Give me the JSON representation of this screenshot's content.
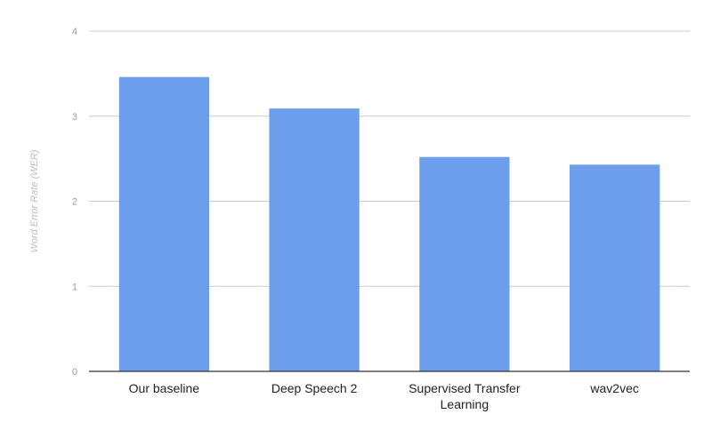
{
  "chart_data": {
    "type": "bar",
    "title": "",
    "xlabel": "",
    "ylabel": "Word Error Rate (WER)",
    "categories": [
      "Our baseline",
      "Deep Speech 2",
      "Supervised Transfer Learning",
      "wav2vec"
    ],
    "category_lines": [
      [
        "Our baseline"
      ],
      [
        "Deep Speech 2"
      ],
      [
        "Supervised Transfer",
        "Learning"
      ],
      [
        "wav2vec"
      ]
    ],
    "values": [
      3.46,
      3.09,
      2.52,
      2.43
    ],
    "ylim": [
      0,
      4
    ],
    "yticks": [
      0,
      1,
      2,
      3,
      4
    ],
    "grid": true,
    "legend": "none"
  },
  "colors": {
    "bar": "#6d9eeb",
    "grid": "#cccccc",
    "axis": "#333333",
    "tick_text": "#9e9e9e",
    "label_text": "#222222",
    "axis_title": "#bdbdbd"
  }
}
